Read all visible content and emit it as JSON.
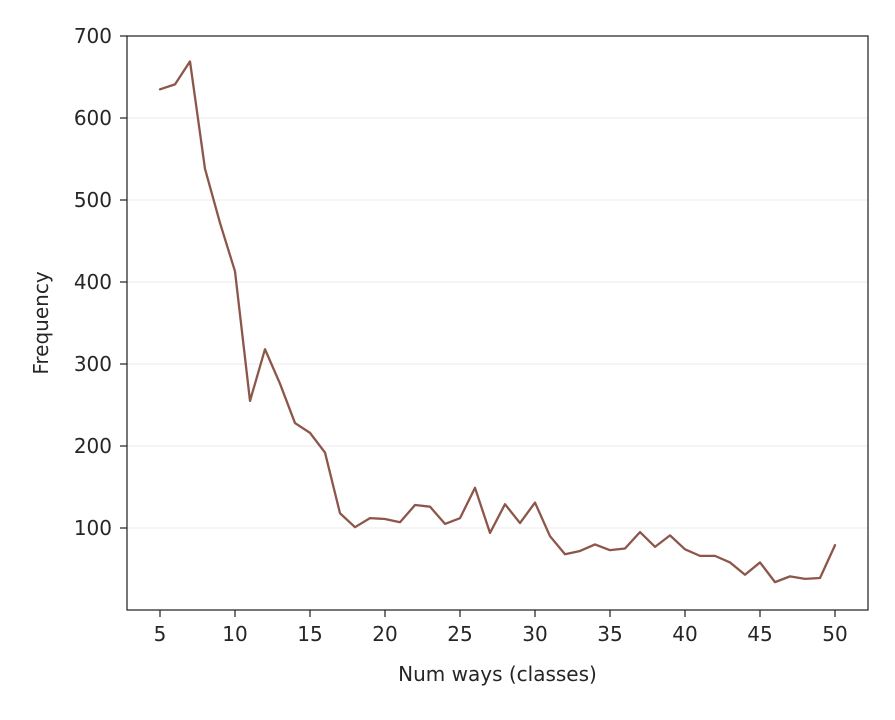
{
  "chart_data": {
    "type": "line",
    "title": "",
    "xlabel": "Num ways (classes)",
    "ylabel": "Frequency",
    "xlim": [
      2.8,
      52.2
    ],
    "ylim": [
      0,
      700
    ],
    "xticks": [
      5,
      10,
      15,
      20,
      25,
      30,
      35,
      40,
      45,
      50
    ],
    "yticks": [
      100,
      200,
      300,
      400,
      500,
      600,
      700
    ],
    "grid": "y-major",
    "legend": "none",
    "series": [
      {
        "color": "#8c564b",
        "x": [
          5,
          6,
          7,
          8,
          9,
          10,
          11,
          12,
          13,
          14,
          15,
          16,
          17,
          18,
          19,
          20,
          21,
          22,
          23,
          24,
          25,
          26,
          27,
          28,
          29,
          30,
          31,
          32,
          33,
          34,
          35,
          36,
          37,
          38,
          39,
          40,
          41,
          42,
          43,
          44,
          45,
          46,
          47,
          48,
          49,
          50
        ],
        "values": [
          635,
          641,
          669,
          538,
          472,
          413,
          255,
          318,
          276,
          228,
          216,
          192,
          118,
          101,
          112,
          111,
          107,
          128,
          126,
          105,
          112,
          149,
          94,
          129,
          106,
          131,
          90,
          68,
          72,
          80,
          73,
          75,
          95,
          77,
          91,
          74,
          66,
          66,
          58,
          43,
          58,
          34,
          41,
          38,
          39,
          79
        ]
      }
    ]
  }
}
